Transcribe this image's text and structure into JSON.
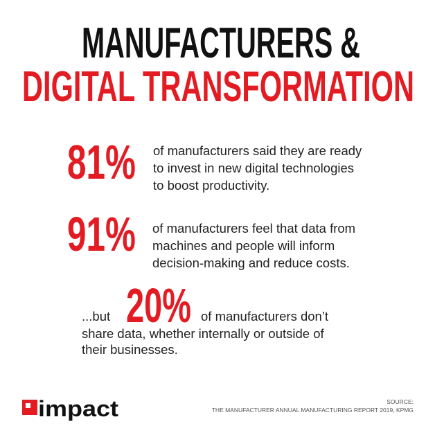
{
  "header": {
    "line1": "MANUFACTURERS &",
    "line2": "DIGITAL TRANSFORMATION"
  },
  "stats": [
    {
      "value": "81%",
      "lines": [
        "of manufacturers said they are ready",
        "to invest in new digital technologies",
        "to boost productivity."
      ]
    },
    {
      "value": "91%",
      "lines": [
        "of manufacturers feel that data from",
        "machines and people will inform",
        "decision-making and reduce costs."
      ]
    },
    {
      "prefix": "...but",
      "value": "20%",
      "lines": [
        "of manufacturers don’t",
        "share data, whether internally or outside of",
        "their businesses."
      ]
    }
  ],
  "footer": {
    "logo": "impact",
    "source_label": "SOURCE:",
    "source": "THE MANUFACTURER ANNUAL MANUFACTURING REPORT 2019, KPMG"
  }
}
